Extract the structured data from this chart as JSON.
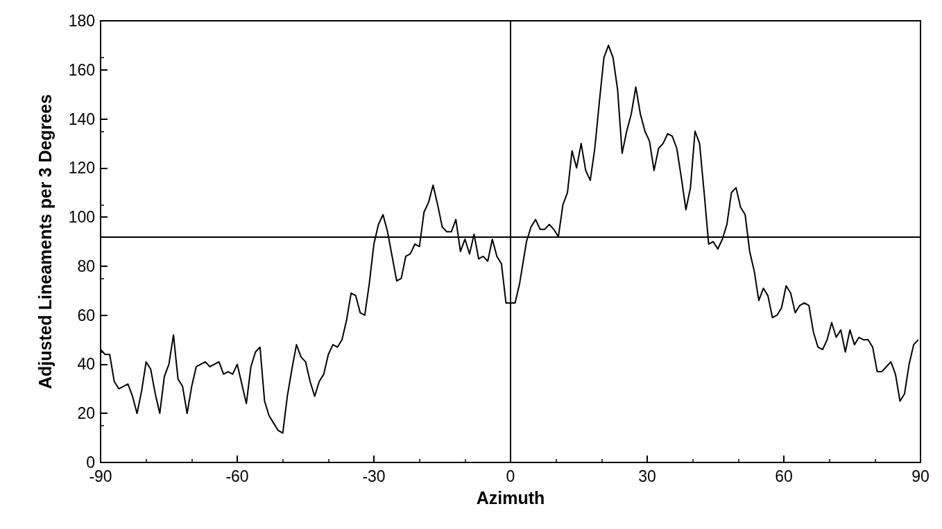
{
  "chart_data": {
    "type": "line",
    "xlabel": "Azimuth",
    "ylabel": "Adjusted Lineaments per 3 Degrees",
    "x": [
      -90,
      -89,
      -88,
      -87,
      -86,
      -85,
      -84,
      -83,
      -82,
      -81,
      -80,
      -79,
      -78,
      -77,
      -76,
      -75,
      -74,
      -73,
      -72,
      -71,
      -70,
      -69,
      -68,
      -67,
      -66,
      -65,
      -64,
      -63,
      -62,
      -61,
      -60,
      -59,
      -58,
      -57,
      -56,
      -55,
      -54,
      -53,
      -52,
      -51,
      -50,
      -49,
      -48,
      -47,
      -46,
      -45,
      -44,
      -43,
      -42,
      -41,
      -40,
      -39,
      -38,
      -37,
      -36,
      -35,
      -34,
      -33,
      -32,
      -31,
      -30,
      -29,
      -28,
      -27,
      -26,
      -25,
      -24,
      -23,
      -22,
      -21,
      -20,
      -19,
      -18,
      -17,
      -16,
      -15,
      -14,
      -13,
      -12,
      -11,
      -10,
      -9,
      -8,
      -7,
      -6,
      -5,
      -4,
      -3,
      -2,
      -1,
      1,
      2,
      3.5,
      4.5,
      5.5,
      6.5,
      7.5,
      8.5,
      9.5,
      10.5,
      11.5,
      12.5,
      13.5,
      14.5,
      15.5,
      16.5,
      17.5,
      18.5,
      19.5,
      20.5,
      21.5,
      22.5,
      23.5,
      24.5,
      25.5,
      26.5,
      27.5,
      28.5,
      29.5,
      30.5,
      31.5,
      32.5,
      33.5,
      34.5,
      35.5,
      36.5,
      37.5,
      38.5,
      39.5,
      40.5,
      41.5,
      42.5,
      43.5,
      44.5,
      45.5,
      46.5,
      47.5,
      48.5,
      49.5,
      50.5,
      51.5,
      52.5,
      53.5,
      54.5,
      55.5,
      56.5,
      57.5,
      58.5,
      59.5,
      60.5,
      61.5,
      62.5,
      63.5,
      64.5,
      65.5,
      66.5,
      67.5,
      68.5,
      69.5,
      70.5,
      71.5,
      72.5,
      73.5,
      74.5,
      75.5,
      76.5,
      77.5,
      78.5,
      79.5,
      80.5,
      81.5,
      82.5,
      83.5,
      84.5,
      85.5,
      86.5,
      87.5,
      88.5,
      89.5
    ],
    "series": [
      {
        "color": "#000000",
        "values": [
          46,
          44,
          44,
          33,
          30,
          31,
          32,
          27,
          20,
          29,
          41,
          38,
          28,
          20,
          35,
          40,
          52,
          34,
          31,
          20,
          31,
          39,
          40,
          41,
          39,
          40,
          41,
          36,
          37,
          36,
          40,
          32,
          24,
          39,
          45,
          47,
          25,
          19,
          16,
          13,
          12,
          27,
          38,
          48,
          43,
          41,
          33,
          27,
          33,
          36,
          44,
          48,
          47,
          50,
          58,
          69,
          68,
          61,
          60,
          73,
          89,
          97,
          101,
          94,
          84,
          74,
          75,
          84,
          85,
          89,
          88,
          102,
          106,
          113,
          105,
          96,
          94,
          94,
          99,
          86,
          91,
          85,
          93,
          83,
          84,
          82,
          91,
          84,
          81,
          65,
          65,
          73,
          90,
          96,
          99,
          95,
          95,
          97,
          95,
          92,
          105,
          110,
          127,
          120,
          130,
          119,
          115,
          128,
          147,
          165,
          170,
          165,
          152,
          126,
          135,
          142,
          153,
          142,
          135,
          131,
          119,
          128,
          130,
          134,
          133,
          128,
          116,
          103,
          112,
          135,
          130,
          110,
          89,
          90,
          87,
          91,
          97,
          110,
          112,
          104,
          101,
          86,
          78,
          66,
          71,
          68,
          59,
          60,
          63,
          72,
          69,
          61,
          64,
          65,
          64,
          53,
          47,
          46,
          50,
          57,
          51,
          54,
          45,
          54,
          48,
          51,
          50,
          50,
          47,
          37,
          37,
          39,
          41,
          36,
          25,
          28,
          40,
          48,
          50
        ]
      }
    ],
    "xlim": [
      -90,
      90
    ],
    "xticks": [
      -90,
      -60,
      -30,
      0,
      30,
      60,
      90
    ],
    "ylim": [
      0,
      180
    ],
    "yticks": [
      0,
      20,
      40,
      60,
      80,
      100,
      120,
      140,
      160,
      180
    ],
    "ref_lines": [
      {
        "axis": "x",
        "value": 0,
        "color": "#000000"
      },
      {
        "axis": "y",
        "value": 92,
        "color": "#000000"
      }
    ],
    "grid": false,
    "marker": "none",
    "line_style": "solid"
  }
}
